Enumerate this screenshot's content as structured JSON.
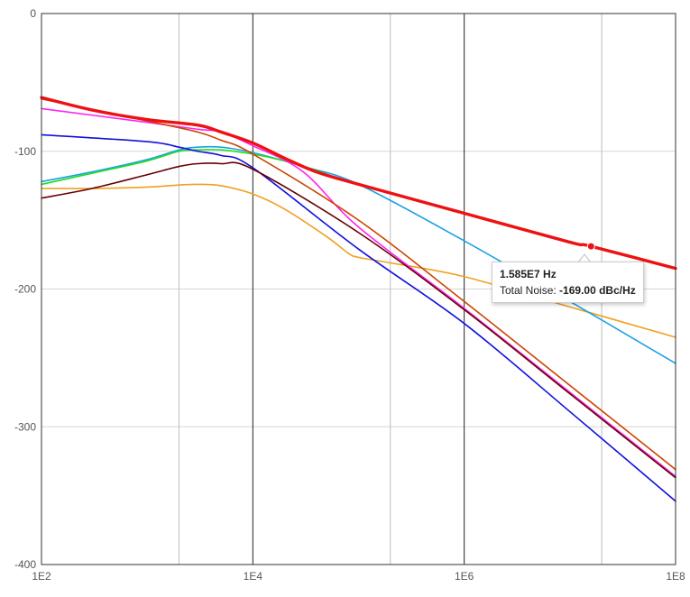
{
  "chart_data": {
    "type": "line",
    "x_scale": "log",
    "xlim": [
      100,
      100000000
    ],
    "ylim": [
      -400,
      0
    ],
    "x_ticks": [
      {
        "value": 100,
        "label": "1E2"
      },
      {
        "value": 10000,
        "label": "1E4"
      },
      {
        "value": 1000000,
        "label": "1E6"
      },
      {
        "value": 100000000,
        "label": "1E8"
      }
    ],
    "y_ticks": [
      {
        "value": 0,
        "label": "0"
      },
      {
        "value": -100,
        "label": "-100"
      },
      {
        "value": -200,
        "label": "-200"
      },
      {
        "value": -300,
        "label": "-300"
      },
      {
        "value": -400,
        "label": "-400"
      }
    ],
    "minor_x_gridlines": [
      2000,
      200000,
      20000000
    ],
    "grid": true,
    "legend": "none",
    "series": [
      {
        "color": "#f0a020",
        "width": 1.6,
        "points": [
          [
            100,
            -127
          ],
          [
            300,
            -127
          ],
          [
            1000,
            -126
          ],
          [
            2000,
            -124.5
          ],
          [
            3000,
            -124
          ],
          [
            5000,
            -125
          ],
          [
            10000,
            -131
          ],
          [
            20000,
            -142
          ],
          [
            50000,
            -162
          ],
          [
            80000,
            -174
          ],
          [
            100000,
            -177
          ],
          [
            200000,
            -181
          ],
          [
            1000000,
            -191
          ],
          [
            10000000,
            -213
          ],
          [
            100000000,
            -235
          ]
        ]
      },
      {
        "color": "#1da1e2",
        "width": 1.6,
        "points": [
          [
            100,
            -122
          ],
          [
            300,
            -115
          ],
          [
            1000,
            -106
          ],
          [
            2000,
            -99
          ],
          [
            3000,
            -97
          ],
          [
            5000,
            -97
          ],
          [
            10000,
            -101
          ],
          [
            30000,
            -111
          ],
          [
            100000,
            -124
          ],
          [
            1000000,
            -165
          ],
          [
            10000000,
            -209
          ],
          [
            100000000,
            -254
          ]
        ]
      },
      {
        "color": "#22dd22",
        "width": 1.6,
        "points": [
          [
            100,
            -124
          ],
          [
            300,
            -116
          ],
          [
            1000,
            -107
          ],
          [
            2000,
            -100
          ],
          [
            3000,
            -99
          ],
          [
            5000,
            -99
          ],
          [
            10000,
            -102
          ],
          [
            20000,
            -107
          ],
          [
            40000,
            -114
          ],
          [
            60000,
            -119
          ]
        ]
      },
      {
        "color": "#1010dd",
        "width": 1.6,
        "points": [
          [
            100,
            -88
          ],
          [
            1000,
            -93
          ],
          [
            2000,
            -97
          ],
          [
            3000,
            -100
          ],
          [
            5000,
            -103
          ],
          [
            10000,
            -112
          ],
          [
            100000,
            -171
          ],
          [
            1000000,
            -225
          ],
          [
            10000000,
            -289
          ],
          [
            100000000,
            -354
          ]
        ]
      },
      {
        "color": "#ff22ee",
        "width": 1.6,
        "points": [
          [
            100,
            -69
          ],
          [
            1000,
            -79
          ],
          [
            3000,
            -84
          ],
          [
            5000,
            -86
          ],
          [
            10000,
            -96
          ],
          [
            30000,
            -115
          ],
          [
            100000,
            -155
          ],
          [
            1000000,
            -214
          ],
          [
            10000000,
            -275
          ],
          [
            100000000,
            -336
          ]
        ]
      },
      {
        "color": "#cc4400",
        "width": 1.6,
        "points": [
          [
            100,
            -62
          ],
          [
            1000,
            -78
          ],
          [
            3000,
            -86
          ],
          [
            5000,
            -92
          ],
          [
            10000,
            -102
          ],
          [
            100000,
            -150
          ],
          [
            1000000,
            -209
          ],
          [
            10000000,
            -270
          ],
          [
            100000000,
            -331
          ]
        ]
      },
      {
        "color": "#660000",
        "width": 1.6,
        "points": [
          [
            100,
            -134
          ],
          [
            300,
            -127
          ],
          [
            1000,
            -117
          ],
          [
            2000,
            -111
          ],
          [
            3000,
            -109
          ],
          [
            5000,
            -109
          ],
          [
            10000,
            -113
          ],
          [
            100000,
            -159
          ],
          [
            1000000,
            -215
          ],
          [
            10000000,
            -276
          ],
          [
            100000000,
            -337
          ]
        ]
      },
      {
        "color": "#ee1111",
        "width": 3.4,
        "points": [
          [
            100,
            -61
          ],
          [
            300,
            -70
          ],
          [
            1000,
            -77
          ],
          [
            3000,
            -81
          ],
          [
            5000,
            -86
          ],
          [
            10000,
            -94
          ],
          [
            20000,
            -105
          ],
          [
            40000,
            -115
          ],
          [
            100000,
            -124
          ],
          [
            1000000,
            -145
          ],
          [
            10000000,
            -166
          ],
          [
            15850000,
            -169
          ],
          [
            100000000,
            -185
          ]
        ]
      }
    ],
    "tooltip": {
      "x": 15850000,
      "y": -169,
      "x_label": "1.585E7 Hz",
      "series_name": "Total Noise:",
      "value_label": "-169.00 dBc/Hz"
    }
  }
}
